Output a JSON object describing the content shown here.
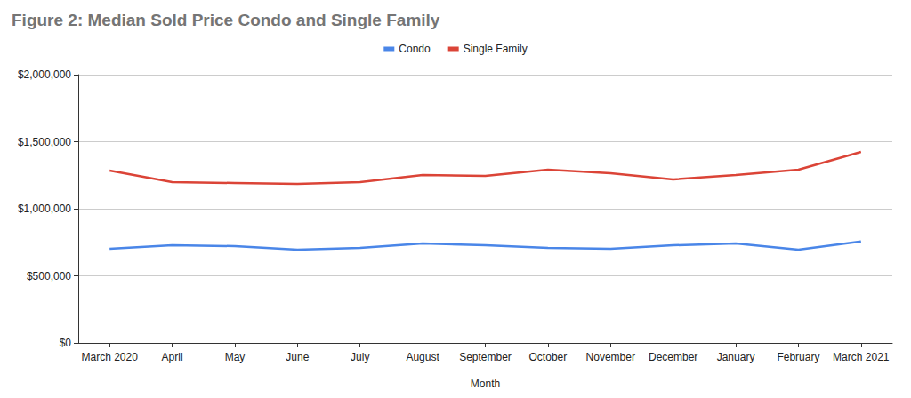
{
  "chart_data": {
    "type": "line",
    "title": "Figure 2: Median Sold Price Condo and Single Family",
    "x_label": "Month",
    "categories": [
      "March 2020",
      "April",
      "May",
      "June",
      "July",
      "August",
      "September",
      "October",
      "November",
      "December",
      "January",
      "February",
      "March 2021"
    ],
    "series": [
      {
        "name": "Condo",
        "color": "#4a86e8",
        "values": [
          702000,
          728000,
          722000,
          695000,
          709000,
          742000,
          728000,
          709000,
          702000,
          728000,
          742000,
          695000,
          757000
        ]
      },
      {
        "name": "Single Family",
        "color": "#db4437",
        "values": [
          1285000,
          1199000,
          1192000,
          1185000,
          1199000,
          1252000,
          1245000,
          1291000,
          1265000,
          1219000,
          1252000,
          1291000,
          1424000
        ]
      }
    ],
    "ylim": [
      0,
      2000000
    ],
    "yticks": [
      {
        "value": 0,
        "label": "$0"
      },
      {
        "value": 500000,
        "label": "$500,000"
      },
      {
        "value": 1000000,
        "label": "$1,000,000"
      },
      {
        "value": 1500000,
        "label": "$1,500,000"
      },
      {
        "value": 2000000,
        "label": "$2,000,000"
      }
    ],
    "grid": true,
    "legend": "top"
  }
}
